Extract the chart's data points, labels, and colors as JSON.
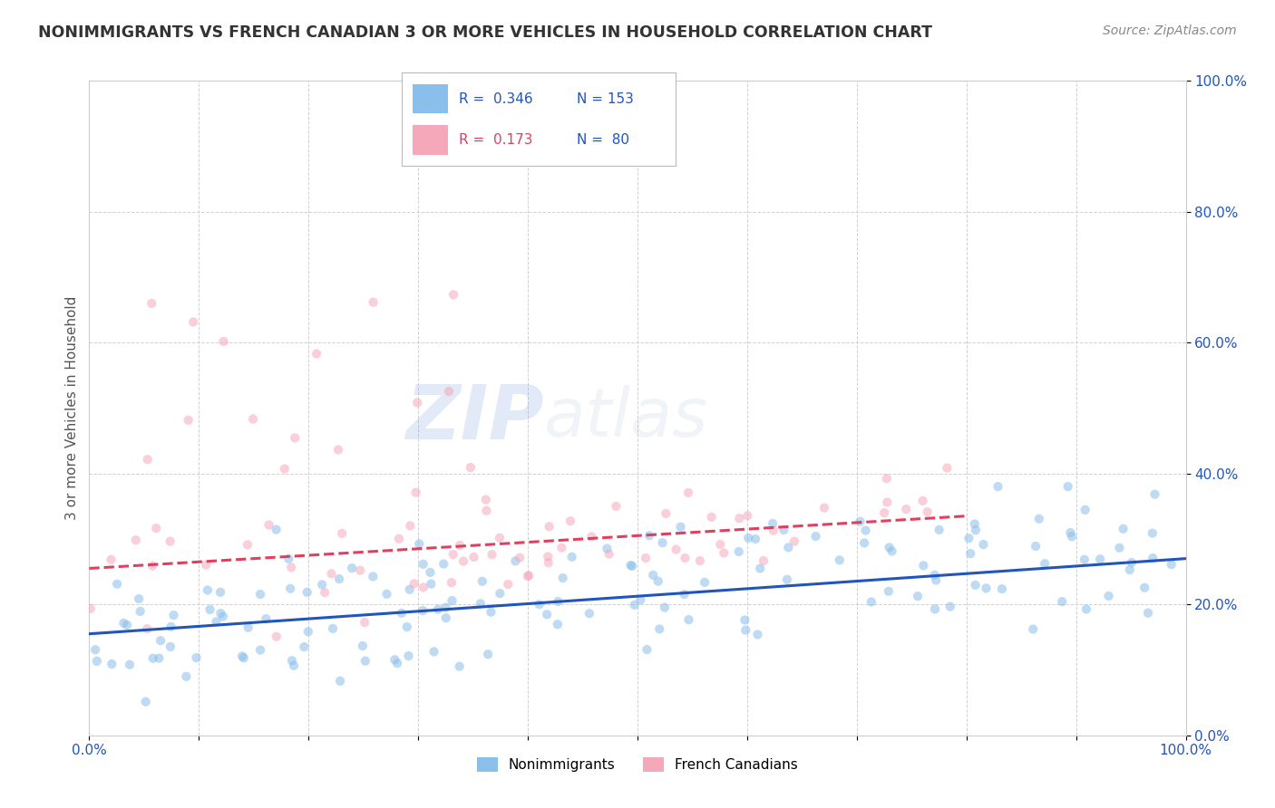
{
  "title": "NONIMMIGRANTS VS FRENCH CANADIAN 3 OR MORE VEHICLES IN HOUSEHOLD CORRELATION CHART",
  "source": "Source: ZipAtlas.com",
  "ylabel": "3 or more Vehicles in Household",
  "watermark": "ZIPatlas",
  "xlim": [
    0,
    100
  ],
  "ylim": [
    0,
    100
  ],
  "xticks": [
    0,
    10,
    20,
    30,
    40,
    50,
    60,
    70,
    80,
    90,
    100
  ],
  "yticks": [
    0,
    20,
    40,
    60,
    80,
    100
  ],
  "legend1_R": "0.346",
  "legend1_N": "153",
  "legend2_R": "0.173",
  "legend2_N": " 80",
  "blue_color": "#89BFEA",
  "pink_color": "#F5A8BA",
  "blue_line_color": "#2255BB",
  "pink_line_color": "#E04060",
  "title_color": "#333333",
  "axis_label_color": "#555555",
  "source_color": "#888888",
  "legend_color_blue": "#2255BB",
  "legend_color_pink": "#E04060",
  "legend_color_N": "#2255BB",
  "blue_line_x0": 0,
  "blue_line_x1": 100,
  "blue_line_y0": 15.5,
  "blue_line_y1": 27.0,
  "pink_line_x0": 0,
  "pink_line_x1": 80,
  "pink_line_y0": 25.5,
  "pink_line_y1": 33.5,
  "background_color": "#FFFFFF",
  "grid_color": "#CCCCCC",
  "title_fontsize": 12.5,
  "label_fontsize": 11,
  "tick_fontsize": 11,
  "source_fontsize": 10,
  "watermark_fontsize": 60,
  "watermark_alpha": 0.1,
  "scatter_size": 55,
  "scatter_alpha": 0.55,
  "line_width": 2.2,
  "blue_seed": 42,
  "pink_seed": 7
}
